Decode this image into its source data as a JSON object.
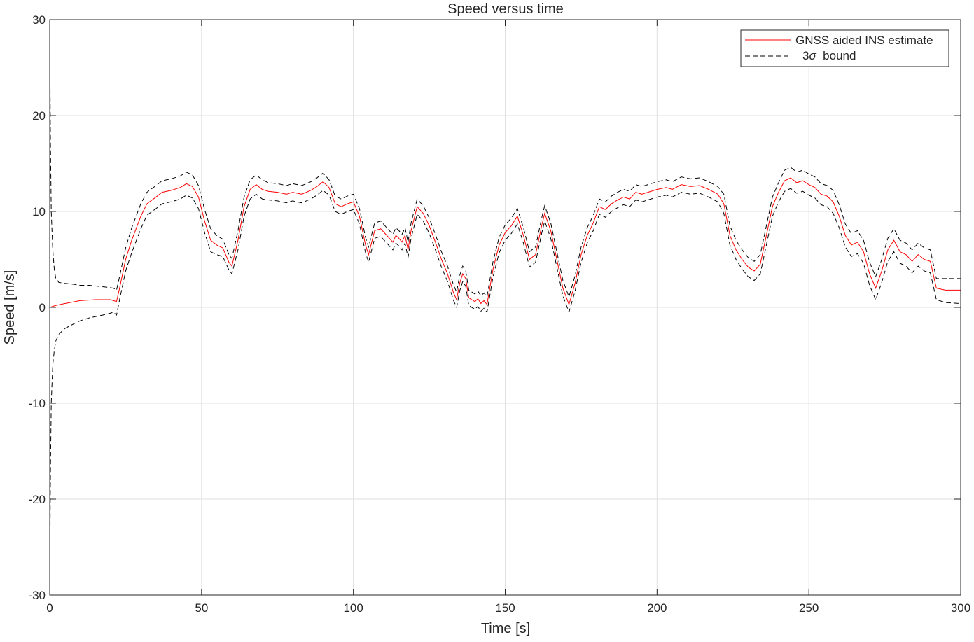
{
  "chart_data": {
    "type": "line",
    "title": "Speed versus time",
    "xlabel": "Time [s]",
    "ylabel": "Speed [m/s]",
    "xlim": [
      0,
      300
    ],
    "ylim": [
      -30,
      30
    ],
    "xticks": [
      0,
      50,
      100,
      150,
      200,
      250,
      300
    ],
    "yticks": [
      -30,
      -20,
      -10,
      0,
      10,
      20,
      30
    ],
    "xtick_labels": [
      "0",
      "50",
      "100",
      "150",
      "200",
      "250",
      "300"
    ],
    "ytick_labels": [
      "-30",
      "-20",
      "-10",
      "0",
      "10",
      "20",
      "30"
    ],
    "grid": true,
    "legend_position": "top-right",
    "legend": {
      "estimate_label": "GNSS aided INS estimate",
      "bound_prefix": "3",
      "bound_symbol": "σ",
      "bound_suffix": "  bound"
    },
    "colors": {
      "estimate": "#ff0000",
      "bound": "#000000",
      "grid": "#dfdfdf",
      "axes": "#262626"
    },
    "series": [
      {
        "name": "GNSS aided INS estimate",
        "style": "solid",
        "x": [
          0,
          2,
          5,
          10,
          15,
          20,
          22,
          23,
          25,
          27,
          30,
          32,
          35,
          37,
          40,
          43,
          45,
          47,
          49,
          51,
          53,
          55,
          57,
          59,
          60,
          62,
          64,
          66,
          68,
          70,
          72,
          75,
          78,
          80,
          83,
          86,
          88,
          90,
          92,
          94,
          96,
          98,
          100,
          102,
          104,
          105,
          107,
          109,
          111,
          113,
          114,
          115,
          116,
          117,
          118,
          119,
          121,
          123,
          125,
          127,
          129,
          131,
          133,
          134,
          135,
          136,
          137,
          138,
          140,
          141,
          142,
          143,
          144,
          146,
          148,
          150,
          152,
          154,
          156,
          158,
          160,
          162,
          163,
          165,
          167,
          169,
          171,
          173,
          175,
          177,
          179,
          181,
          183,
          185,
          187,
          189,
          191,
          193,
          195,
          197,
          200,
          203,
          205,
          208,
          211,
          214,
          217,
          220,
          222,
          224,
          226,
          228,
          230,
          232,
          234,
          236,
          238,
          240,
          242,
          244,
          246,
          248,
          250,
          252,
          254,
          256,
          258,
          260,
          262,
          264,
          266,
          268,
          270,
          272,
          274,
          276,
          278,
          280,
          282,
          284,
          286,
          288,
          290,
          292,
          295,
          300
        ],
        "y": [
          0,
          0.2,
          0.4,
          0.7,
          0.8,
          0.8,
          0.6,
          2.0,
          5.0,
          7.0,
          9.5,
          10.8,
          11.5,
          12.0,
          12.2,
          12.5,
          12.9,
          12.6,
          11.5,
          9.0,
          7.0,
          6.5,
          6.2,
          4.7,
          4.3,
          7.0,
          10.5,
          12.3,
          12.8,
          12.3,
          12.1,
          12.0,
          11.8,
          12.0,
          11.8,
          12.2,
          12.6,
          13.1,
          12.5,
          10.8,
          10.5,
          10.8,
          11.0,
          9.5,
          6.5,
          5.5,
          8.0,
          8.2,
          7.5,
          6.8,
          7.5,
          7.2,
          6.8,
          7.5,
          6.0,
          8.0,
          10.5,
          9.8,
          8.5,
          6.8,
          5.0,
          3.5,
          1.5,
          0.8,
          2.5,
          3.5,
          3.0,
          1.0,
          0.6,
          0.9,
          0.4,
          0.7,
          0.3,
          4.0,
          6.5,
          7.8,
          8.5,
          9.5,
          7.5,
          5.0,
          5.5,
          8.5,
          9.8,
          8.0,
          5.0,
          2.0,
          0.3,
          2.5,
          5.5,
          7.5,
          8.8,
          10.5,
          10.2,
          10.8,
          11.2,
          11.5,
          11.3,
          12.0,
          11.8,
          12.0,
          12.3,
          12.5,
          12.3,
          12.8,
          12.6,
          12.7,
          12.3,
          11.8,
          10.8,
          7.5,
          6.0,
          5.0,
          4.2,
          3.8,
          4.5,
          7.5,
          10.5,
          12.0,
          13.2,
          13.5,
          13.0,
          13.2,
          12.8,
          12.5,
          11.8,
          11.6,
          11.0,
          9.5,
          7.5,
          6.5,
          6.8,
          5.8,
          3.5,
          2.0,
          3.8,
          6.0,
          7.0,
          5.8,
          5.5,
          4.8,
          5.5,
          5.0,
          4.8,
          2.0,
          1.8,
          1.8
        ]
      },
      {
        "name": "3σ  bound",
        "style": "dashed",
        "x": [
          0.05,
          0.25,
          0.5,
          1,
          1.5,
          2,
          3,
          5,
          8,
          10,
          13,
          16,
          19,
          21,
          22,
          23,
          25,
          27,
          30,
          32,
          35,
          37,
          40,
          43,
          45,
          47,
          49,
          51,
          53,
          55,
          57,
          59,
          60,
          62,
          64,
          66,
          68,
          70,
          72,
          75,
          78,
          80,
          83,
          86,
          88,
          90,
          92,
          94,
          96,
          98,
          100,
          102,
          104,
          105,
          107,
          109,
          111,
          113,
          114,
          115,
          116,
          117,
          118,
          119,
          121,
          123,
          125,
          127,
          129,
          131,
          133,
          134,
          135,
          136,
          137,
          138,
          140,
          141,
          142,
          143,
          144,
          146,
          148,
          150,
          152,
          154,
          156,
          158,
          160,
          162,
          163,
          165,
          167,
          169,
          171,
          173,
          175,
          177,
          179,
          181,
          183,
          185,
          187,
          189,
          191,
          193,
          195,
          197,
          200,
          203,
          205,
          208,
          211,
          214,
          217,
          220,
          222,
          224,
          226,
          228,
          230,
          232,
          234,
          236,
          238,
          240,
          242,
          244,
          246,
          248,
          250,
          252,
          254,
          256,
          258,
          260,
          262,
          264,
          266,
          268,
          270,
          272,
          274,
          276,
          278,
          280,
          282,
          284,
          286,
          288,
          290,
          292,
          295,
          300
        ],
        "y_upper": [
          26.0,
          17.0,
          10.0,
          6.0,
          4.0,
          3.0,
          2.6,
          2.5,
          2.4,
          2.3,
          2.3,
          2.2,
          2.1,
          2.0,
          1.8,
          3.2,
          6.2,
          8.3,
          10.8,
          12.0,
          12.7,
          13.2,
          13.4,
          13.7,
          14.1,
          13.8,
          12.7,
          10.2,
          8.2,
          7.5,
          7.1,
          5.5,
          5.1,
          8.0,
          11.5,
          13.3,
          13.8,
          13.3,
          13.0,
          12.9,
          12.7,
          12.9,
          12.7,
          13.1,
          13.5,
          14.0,
          13.3,
          11.6,
          11.3,
          11.6,
          11.8,
          10.3,
          7.3,
          6.3,
          8.8,
          9.0,
          8.3,
          7.6,
          8.3,
          8.0,
          7.6,
          8.3,
          6.8,
          8.8,
          11.3,
          10.6,
          9.3,
          7.6,
          5.8,
          4.3,
          2.3,
          1.6,
          3.3,
          4.3,
          3.8,
          1.8,
          1.4,
          1.7,
          1.2,
          1.5,
          1.1,
          4.8,
          7.3,
          8.6,
          9.3,
          10.3,
          8.3,
          5.8,
          6.3,
          9.3,
          10.6,
          8.8,
          5.8,
          2.8,
          1.1,
          3.3,
          6.3,
          8.3,
          9.6,
          11.3,
          11.0,
          11.6,
          12.0,
          12.3,
          12.1,
          12.8,
          12.6,
          12.8,
          13.1,
          13.3,
          13.1,
          13.6,
          13.4,
          13.5,
          13.1,
          12.6,
          11.8,
          8.5,
          7.0,
          6.0,
          5.2,
          4.8,
          5.5,
          8.5,
          11.5,
          13.0,
          14.3,
          14.6,
          14.1,
          14.3,
          13.9,
          13.6,
          12.9,
          12.7,
          12.2,
          10.7,
          8.7,
          7.7,
          8.0,
          7.0,
          4.7,
          3.2,
          5.0,
          7.2,
          8.2,
          7.0,
          6.7,
          6.0,
          6.7,
          6.2,
          6.0,
          3.0,
          3.0,
          3.0
        ],
        "y_lower": [
          -26.0,
          -17.0,
          -10.0,
          -6.0,
          -4.5,
          -3.5,
          -2.8,
          -2.2,
          -1.7,
          -1.4,
          -1.1,
          -0.9,
          -0.7,
          -0.5,
          -0.8,
          0.8,
          3.8,
          5.7,
          8.2,
          9.6,
          10.3,
          10.8,
          11.0,
          11.3,
          11.7,
          11.4,
          10.3,
          7.8,
          5.8,
          5.5,
          5.3,
          3.9,
          3.5,
          6.0,
          9.5,
          11.3,
          11.8,
          11.3,
          11.2,
          11.1,
          10.9,
          11.1,
          10.9,
          11.3,
          11.7,
          12.2,
          11.7,
          10.0,
          9.7,
          10.0,
          10.2,
          8.7,
          5.7,
          4.7,
          7.2,
          7.4,
          6.7,
          6.0,
          6.7,
          6.4,
          6.0,
          6.7,
          5.2,
          7.2,
          9.7,
          9.0,
          7.7,
          6.0,
          4.2,
          2.7,
          0.7,
          0.0,
          1.7,
          2.7,
          2.2,
          0.2,
          -0.2,
          0.1,
          -0.4,
          -0.1,
          -0.5,
          3.2,
          5.7,
          7.0,
          7.7,
          8.7,
          6.7,
          4.2,
          4.7,
          7.7,
          9.0,
          7.2,
          4.2,
          1.2,
          -0.5,
          1.7,
          4.7,
          6.7,
          8.0,
          9.7,
          9.4,
          10.0,
          10.4,
          10.7,
          10.5,
          11.2,
          11.0,
          11.2,
          11.5,
          11.7,
          11.5,
          12.0,
          11.8,
          11.9,
          11.5,
          11.0,
          9.8,
          6.5,
          5.0,
          4.0,
          3.2,
          2.8,
          3.5,
          6.5,
          9.5,
          11.0,
          12.1,
          12.4,
          11.9,
          12.1,
          11.7,
          11.4,
          10.7,
          10.5,
          9.8,
          8.3,
          6.3,
          5.3,
          5.6,
          4.6,
          2.3,
          0.8,
          2.6,
          4.8,
          5.8,
          4.6,
          4.3,
          3.6,
          4.3,
          3.8,
          3.6,
          0.8,
          0.5,
          0.4
        ]
      }
    ]
  }
}
